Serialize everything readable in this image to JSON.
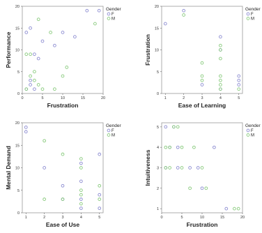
{
  "colors": {
    "F": "#8a8ad0",
    "M": "#86c97a",
    "frame": "#9a9a9a"
  },
  "chart_data": [
    {
      "type": "scatter",
      "xlabel": "Frustration",
      "ylabel": "Performance",
      "xlim": [
        0,
        20
      ],
      "ylim": [
        0,
        20
      ],
      "xticks": [
        "0",
        "5",
        "10",
        "15",
        "20"
      ],
      "yticks": [
        "0",
        "5",
        "10",
        "15",
        "20"
      ],
      "legend": {
        "title": "Gender",
        "labels": [
          "F",
          "M"
        ]
      },
      "series": [
        {
          "name": "F",
          "points": [
            [
              1,
              14
            ],
            [
              2,
              15
            ],
            [
              2,
              3
            ],
            [
              2,
              2
            ],
            [
              3,
              9
            ],
            [
              4,
              8
            ],
            [
              5,
              12
            ],
            [
              8,
              11
            ],
            [
              10,
              14
            ],
            [
              13,
              13
            ],
            [
              16,
              19
            ],
            [
              19,
              19
            ],
            [
              1,
              1
            ],
            [
              3,
              1
            ]
          ]
        },
        {
          "name": "M",
          "points": [
            [
              1,
              9
            ],
            [
              2,
              9
            ],
            [
              2,
              4
            ],
            [
              3,
              5
            ],
            [
              4,
              17
            ],
            [
              5,
              1
            ],
            [
              7,
              14
            ],
            [
              8,
              1
            ],
            [
              10,
              4
            ],
            [
              11,
              6
            ],
            [
              18,
              16
            ],
            [
              1,
              1
            ],
            [
              3,
              3
            ],
            [
              4,
              2
            ]
          ]
        }
      ]
    },
    {
      "type": "scatter",
      "xlabel": "Ease of Learning",
      "ylabel": "Frustration",
      "xlim": [
        0.8,
        5.2
      ],
      "ylim": [
        0,
        20
      ],
      "xticks": [
        "1",
        "2",
        "3",
        "4",
        "5"
      ],
      "yticks": [
        "0",
        "5",
        "10",
        "15",
        "20"
      ],
      "legend": {
        "title": "Gender",
        "labels": [
          "F",
          "M"
        ]
      },
      "series": [
        {
          "name": "F",
          "points": [
            [
              1,
              16
            ],
            [
              2,
              19
            ],
            [
              4,
              13
            ],
            [
              4,
              10
            ],
            [
              5,
              4
            ],
            [
              5,
              3
            ],
            [
              5,
              2
            ],
            [
              3,
              2
            ],
            [
              4,
              1
            ]
          ]
        },
        {
          "name": "M",
          "points": [
            [
              2,
              18
            ],
            [
              3,
              7
            ],
            [
              3,
              4
            ],
            [
              3,
              3
            ],
            [
              4,
              11
            ],
            [
              4,
              10
            ],
            [
              4,
              8
            ],
            [
              4,
              4
            ],
            [
              4,
              3
            ],
            [
              4,
              2
            ],
            [
              4,
              1
            ],
            [
              5,
              1
            ]
          ]
        }
      ]
    },
    {
      "type": "scatter",
      "xlabel": "Ease of Use",
      "ylabel": "Mental Demand",
      "xlim": [
        0.8,
        5.2
      ],
      "ylim": [
        0,
        20
      ],
      "xticks": [
        "1",
        "2",
        "3",
        "4",
        "5"
      ],
      "yticks": [
        "0",
        "5",
        "10",
        "15",
        "20"
      ],
      "legend": {
        "title": "Gender",
        "labels": [
          "F",
          "M"
        ]
      },
      "series": [
        {
          "name": "F",
          "points": [
            [
              1,
              19
            ],
            [
              1,
              18
            ],
            [
              2,
              10
            ],
            [
              3,
              6
            ],
            [
              3,
              3
            ],
            [
              4,
              11
            ],
            [
              4,
              7
            ],
            [
              4,
              3
            ],
            [
              4,
              1
            ],
            [
              5,
              13
            ],
            [
              5,
              4
            ],
            [
              5,
              1
            ]
          ]
        },
        {
          "name": "M",
          "points": [
            [
              2,
              16
            ],
            [
              2,
              3
            ],
            [
              3,
              13
            ],
            [
              3,
              3
            ],
            [
              4,
              12
            ],
            [
              4,
              10
            ],
            [
              4,
              5
            ],
            [
              4,
              4
            ],
            [
              4,
              2
            ],
            [
              5,
              6
            ],
            [
              5,
              3
            ]
          ]
        }
      ]
    },
    {
      "type": "scatter",
      "xlabel": "Frustration",
      "ylabel": "Intuitiveness",
      "xlim": [
        0,
        20
      ],
      "ylim": [
        0.8,
        5.2
      ],
      "xticks": [
        "0",
        "5",
        "10",
        "15",
        "20"
      ],
      "yticks": [
        "1",
        "2",
        "3",
        "4",
        "5"
      ],
      "legend": {
        "title": "Gender",
        "labels": [
          "F",
          "M"
        ]
      },
      "series": [
        {
          "name": "F",
          "points": [
            [
              1,
              5
            ],
            [
              3,
              5
            ],
            [
              4,
              3
            ],
            [
              2,
              4
            ],
            [
              4,
              4
            ],
            [
              7,
              3
            ],
            [
              10,
              2
            ],
            [
              13,
              4
            ],
            [
              16,
              1
            ],
            [
              9,
              3
            ],
            [
              1,
              3
            ]
          ]
        },
        {
          "name": "M",
          "points": [
            [
              3,
              5
            ],
            [
              4,
              5
            ],
            [
              1,
              4
            ],
            [
              2,
              4
            ],
            [
              5,
              4
            ],
            [
              1,
              3
            ],
            [
              2,
              3
            ],
            [
              5,
              3
            ],
            [
              8,
              4
            ],
            [
              7,
              2
            ],
            [
              10,
              3
            ],
            [
              11,
              2
            ],
            [
              18,
              1
            ],
            [
              19,
              1
            ]
          ]
        }
      ]
    }
  ]
}
